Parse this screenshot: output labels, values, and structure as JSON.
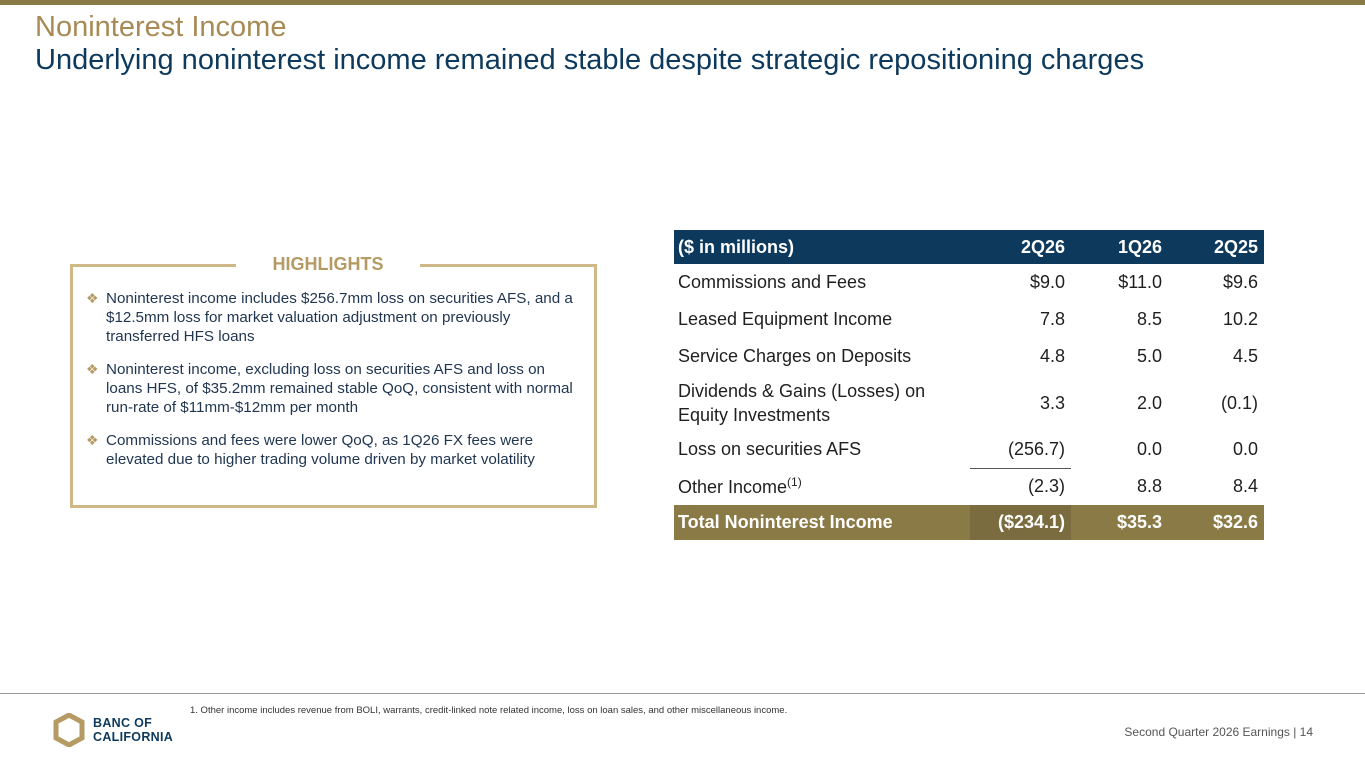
{
  "header": {
    "title": "Noninterest Income",
    "subtitle": "Underlying noninterest income remained stable despite strategic repositioning charges"
  },
  "highlights": {
    "title": "HIGHLIGHTS",
    "bullet_glyph": "❖",
    "items": [
      "Noninterest income includes $256.7mm loss on securities AFS, and a $12.5mm loss for market valuation adjustment on previously transferred HFS loans",
      "Noninterest income, excluding loss on securities AFS and loss on loans HFS, of $35.2mm remained stable QoQ, consistent with normal run-rate of $11mm-$12mm per month",
      "Commissions and fees were lower QoQ, as 1Q26 FX fees were elevated due to higher trading volume driven by market volatility"
    ]
  },
  "table": {
    "headers": [
      "($ in millions)",
      "2Q26",
      "1Q26",
      "2Q25"
    ],
    "rows": [
      {
        "label": "Commissions and Fees",
        "values": [
          "$9.0",
          "$11.0",
          "$9.6"
        ]
      },
      {
        "label": "Leased Equipment Income",
        "values": [
          "7.8",
          "8.5",
          "10.2"
        ]
      },
      {
        "label": "Service Charges on Deposits",
        "values": [
          "4.8",
          "5.0",
          "4.5"
        ]
      },
      {
        "label_line1": "Dividends & Gains (Losses) on",
        "label_line2": "Equity Investments",
        "values": [
          "3.3",
          "2.0",
          "(0.1)"
        ]
      },
      {
        "label": "Loss on securities AFS",
        "values": [
          "(256.7)",
          "0.0",
          "0.0"
        ]
      },
      {
        "label": "Other Income",
        "sup": "(1)",
        "values": [
          "(2.3)",
          "8.8",
          "8.4"
        ]
      }
    ],
    "total": {
      "label": "Total Noninterest Income",
      "values": [
        "($234.1)",
        "$35.3",
        "$32.6"
      ]
    }
  },
  "footnote": "1.  Other income includes revenue from BOLI, warrants, credit-linked note related income, loss on loan sales, and other miscellaneous income.",
  "footer": {
    "logo_line1": "BANC OF",
    "logo_line2": "CALIFORNIA",
    "right_text": "Second Quarter 2026 Earnings |  14"
  },
  "colors": {
    "navy": "#0d3a5c",
    "gold": "#b59a63",
    "total_bar": "#8a7a46"
  }
}
